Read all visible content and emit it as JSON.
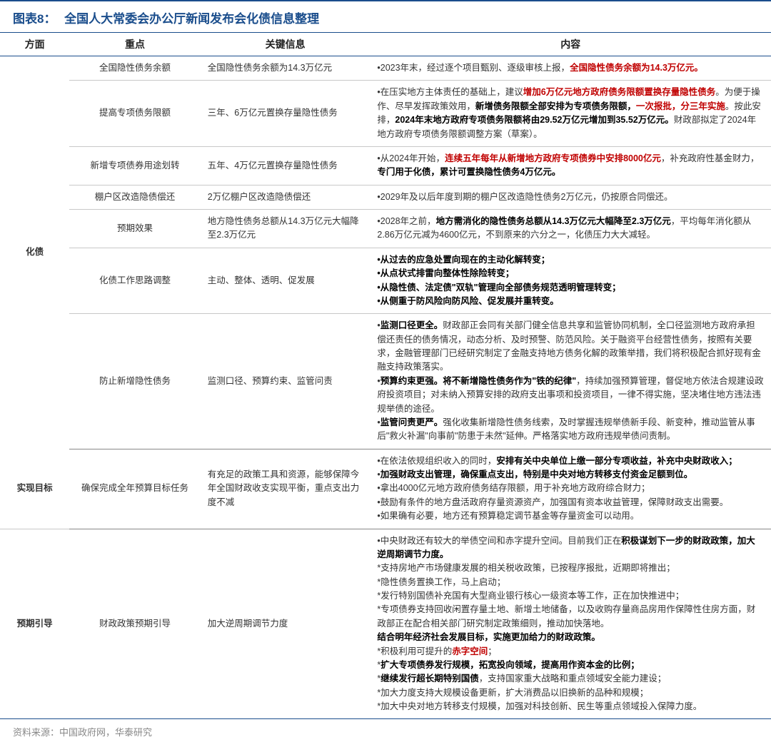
{
  "meta": {
    "colors": {
      "primary": "#1a4d8c",
      "highlight": "#c00000",
      "text": "#333333",
      "grid": "#c8c8c8",
      "muted": "#888888",
      "bg": "#ffffff"
    },
    "fontsize": {
      "title": 17,
      "header": 14,
      "body": 12.5,
      "source": 13
    }
  },
  "title": {
    "number": "图表8：",
    "text": "全国人大常委会办公厅新闻发布会化债信息整理"
  },
  "columns": [
    "方面",
    "重点",
    "关键信息",
    "内容"
  ],
  "column_widths": [
    "9%",
    "17%",
    "22%",
    "52%"
  ],
  "source": "资料来源：中国政府网，华泰研究",
  "rows": [
    {
      "aspect": "化债",
      "aspect_rowspan": 7,
      "point": "全国隐性债务余额",
      "key": "全国隐性债务余额为14.3万亿元",
      "content": "•2023年末，经过逐个项目甄别、逐级审核上报，<span class='hl'>全国隐性债务余额为14.3万亿元。</span>"
    },
    {
      "point": "提高专项债务限额",
      "key": "三年、6万亿元置换存量隐性债务",
      "content": "•在压实地方主体责任的基础上，建议<span class='hl'>增加6万亿元地方政府债务限额置换存量隐性债务</span>。为便于操作、尽早发挥政策效用，<span class='bld'>新增债务限额全部安排为专项债务限额，</span><span class='hl'>一次报批，分三年实施</span>。按此安排，<span class='bld'>2024年末地方政府专项债务限额将由29.52万亿元增加到35.52万亿元。</span>财政部拟定了2024年地方政府专项债务限额调整方案（草案）。"
    },
    {
      "point": "新增专项债券用途划转",
      "key": "五年、4万亿元置换存量隐性债务",
      "content": "•从2024年开始，<span class='hl'>连续五年每年从新增地方政府专项债券中安排8000亿元</span>，补充政府性基金财力，<span class='bld'>专门用于化债，累计可置换隐性债务4万亿元。</span>"
    },
    {
      "point": "棚户区改造隐债偿还",
      "key": "2万亿棚户区改造隐债偿还",
      "content": "•2029年及以后年度到期的棚户区改造隐性债务2万亿元，仍按原合同偿还。"
    },
    {
      "point": "预期效果",
      "key": "地方隐性债务总额从14.3万亿元大幅降至2.3万亿元",
      "content": "•2028年之前，<span class='bld'>地方需消化的隐性债务总额从14.3万亿元大幅降至2.3万亿元</span>，平均每年消化额从2.86万亿元减为4600亿元，不到原来的六分之一，化债压力大大减轻。"
    },
    {
      "point": "化债工作思路调整",
      "key": "主动、整体、透明、促发展",
      "content": "<span class='bld'>•从过去的应急处置向现在的主动化解转变；<br>•从点状式排雷向整体性除险转变；<br>•从隐性债、法定债\"双轨\"管理向全部债务规范透明管理转变；<br>•从侧重于防风险向防风险、促发展并重转变。</span>"
    },
    {
      "point": "防止新增隐性债务",
      "key": "监测口径、预算约束、监管问责",
      "content": "•<span class='bld'>监测口径更全。</span>财政部正会同有关部门健全信息共享和监管协同机制，全口径监测地方政府承担偿还责任的债务情况，动态分析、及时预警、防范风险。关于融资平台经营性债务，按照有关要求，金融管理部门已经研究制定了金融支持地方债务化解的政策举措，我们将积极配合抓好现有金融支持政策落实。<br>•<span class='bld'>预算约束更强。将不新增隐性债务作为\"铁的纪律\"</span>，持续加强预算管理，督促地方依法合规建设政府投资项目；对未纳入预算安排的政府支出事项和投资项目，一律不得实施，坚决堵住地方违法违规举债的途径。<br>•<span class='bld'>监管问责更严。</span>强化收集新增隐性债务线索，及时掌握违规举债新手段、新变种，推动监管从事后\"救火补漏\"向事前\"防患于未然\"延伸。严格落实地方政府违规举债问责制。",
      "section_end": true
    },
    {
      "aspect": "实现目标",
      "aspect_rowspan": 1,
      "point": "确保完成全年预算目标任务",
      "key": "有充足的政策工具和资源，能够保障今年全国财政收支实现平衡，重点支出力度不减",
      "content": "•在依法依规组织收入的同时，<span class='bld'>安排有关中央单位上缴一部分专项收益，补充中央财政收入；</span><br>•<span class='bld'>加强财政支出管理，确保重点支出，特别是中央对地方转移支付资金足额到位。</span><br>•拿出4000亿元地方政府债务结存限额，用于补充地方政府综合财力；<br>•鼓励有条件的地方盘活政府存量资源资产，加强国有资本收益管理，保障财政支出需要。<br>•如果确有必要，地方还有预算稳定调节基金等存量资金可以动用。",
      "section_end": true
    },
    {
      "aspect": "预期引导",
      "aspect_rowspan": 1,
      "point": "财政政策预期引导",
      "key": "加大逆周期调节力度",
      "content": "•中央财政还有较大的举债空间和赤字提升空间。目前我们正在<span class='bld'>积极谋划下一步的财政政策，加大逆周期调节力度。</span><br>*支持房地产市场健康发展的相关税收政策，已按程序报批，近期即将推出；<br>*隐性债务置换工作，马上启动；<br>*发行特别国债补充国有大型商业银行核心一级资本等工作，正在加快推进中；<br>*专项债券支持回收闲置存量土地、新增土地储备，以及收购存量商品房用作保障性住房方面，财政部正在配合相关部门研究制定政策细则，推动加快落地。<br><span class='bld'>结合明年经济社会发展目标，实施更加给力的财政政策。</span><br>*积极利用可提升的<span class='hl'>赤字空间</span>；<br>*<span class='bld'>扩大专项债券发行规模，拓宽投向领域，提高用作资本金的比例；</span><br>*<span class='bld'>继续发行超长期特别国债</span>，支持国家重大战略和重点领域安全能力建设；<br>*加大力度支持大规模设备更新，扩大消费品以旧换新的品种和规模；<br>*加大中央对地方转移支付规模，加强对科技创新、民生等重点领域投入保障力度。",
      "last_section": true
    }
  ]
}
